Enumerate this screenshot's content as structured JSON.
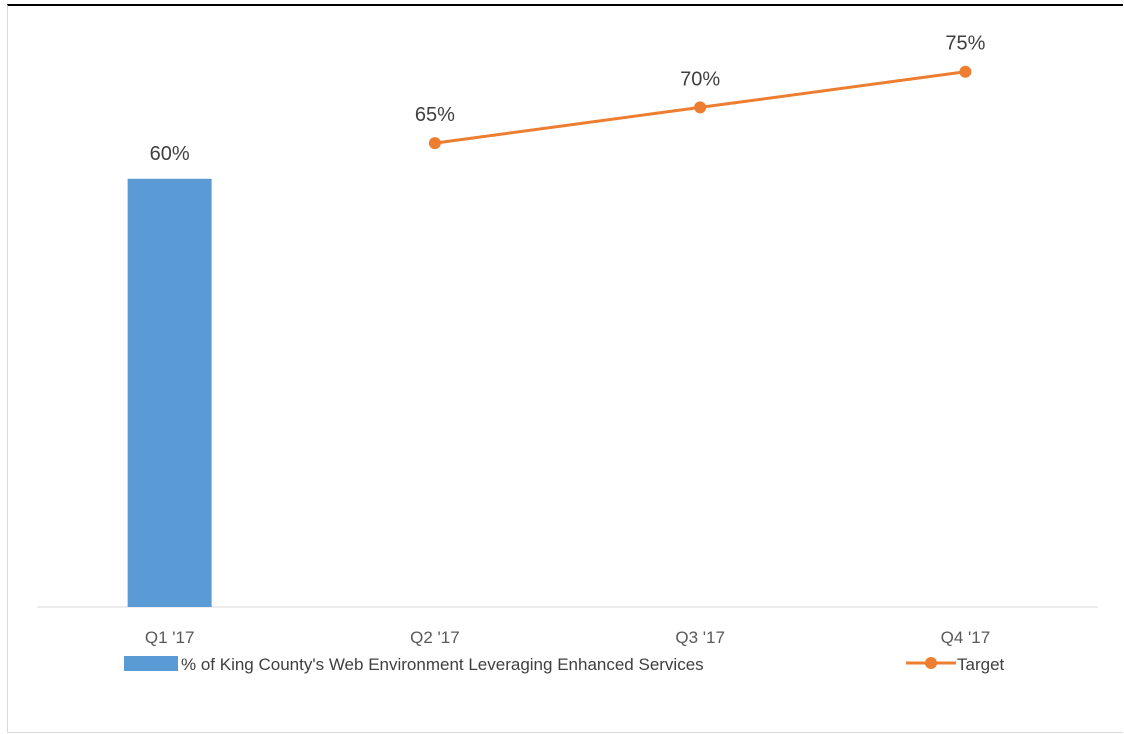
{
  "chart_data": {
    "type": "bar",
    "categories": [
      "Q1 '17",
      "Q2 '17",
      "Q3 '17",
      "Q4 '17"
    ],
    "series": [
      {
        "name": "% of King County's Web Environment Leveraging Enhanced Services",
        "type": "bar",
        "color": "#5b9bd5",
        "values": [
          60,
          null,
          null,
          null
        ],
        "labels": [
          "60%",
          "",
          "",
          ""
        ]
      },
      {
        "name": "Target",
        "type": "line",
        "color": "#ed7d31",
        "values": [
          null,
          65,
          70,
          75
        ],
        "labels": [
          "",
          "65%",
          "70%",
          "75%"
        ]
      }
    ],
    "title": "",
    "xlabel": "",
    "ylabel": "",
    "ylim": [
      0,
      85
    ],
    "grid": false,
    "legend_position": "bottom"
  }
}
